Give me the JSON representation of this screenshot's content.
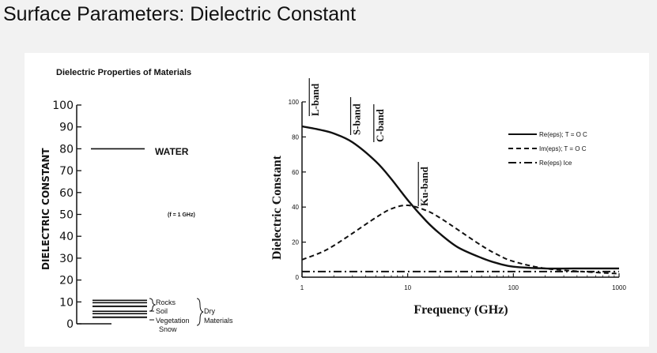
{
  "page": {
    "title": "Surface Parameters: Dielectric Constant"
  },
  "left_figure": {
    "title": "Dielectric Properties of Materials",
    "ylabel": "DIELECTRIC CONSTANT",
    "annotation": "(f = 1 GHz)",
    "water_label": "WATER",
    "rocks_label": "Rocks",
    "soil_label": "Soil",
    "vegetation_label": "Vegetation",
    "snow_label": "Snow",
    "dry_label": "Dry",
    "materials_label": "Materials"
  },
  "right_figure": {
    "bands": [
      "L-band",
      "S-band",
      "C-band",
      "Ku-band"
    ]
  },
  "chart_data": [
    {
      "type": "bar",
      "title": "Dielectric Properties of Materials",
      "ylabel": "DIELECTRIC CONSTANT",
      "ylim": [
        0,
        100
      ],
      "y_ticks": [
        "0",
        "10",
        "20",
        "30",
        "40",
        "50",
        "60",
        "70",
        "80",
        "90",
        "100"
      ],
      "categories": [
        "WATER",
        "Rocks",
        "Soil",
        "Vegetation",
        "Snow"
      ],
      "values": [
        80,
        10,
        8,
        5,
        3
      ]
    },
    {
      "type": "line",
      "xlabel": "Frequency (GHz)",
      "ylabel": "Dielectric Constant",
      "xscale": "log",
      "xlim": [
        1,
        1000
      ],
      "ylim": [
        0,
        100
      ],
      "x_ticks": [
        "1",
        "10",
        "100",
        "1000"
      ],
      "y_ticks": [
        "0",
        "20",
        "40",
        "60",
        "80",
        "100"
      ],
      "legend_position": "top-right",
      "x": [
        1,
        1.5,
        2,
        3,
        5,
        7,
        10,
        15,
        20,
        30,
        50,
        70,
        100,
        200,
        500,
        1000
      ],
      "series": [
        {
          "name": "Re(eps); T = O C",
          "style": "solid",
          "values": [
            86,
            84,
            82,
            77,
            66,
            56,
            44,
            32,
            25,
            17,
            11,
            8,
            6,
            5,
            5,
            5
          ]
        },
        {
          "name": "Im(eps); T = O C",
          "style": "dashed",
          "values": [
            10,
            14,
            18,
            25,
            34,
            39,
            41,
            38,
            34,
            27,
            18,
            13,
            9,
            5,
            3,
            2
          ]
        },
        {
          "name": "Re(eps) Ice",
          "style": "dashdot",
          "values": [
            3.2,
            3.2,
            3.2,
            3.2,
            3.2,
            3.2,
            3.2,
            3.2,
            3.2,
            3.2,
            3.2,
            3.2,
            3.2,
            3.2,
            3.2,
            3.2
          ]
        }
      ],
      "band_positions_ghz": {
        "L-band": 1.3,
        "S-band": 3.2,
        "C-band": 5.3,
        "Ku-band": 14
      }
    }
  ]
}
